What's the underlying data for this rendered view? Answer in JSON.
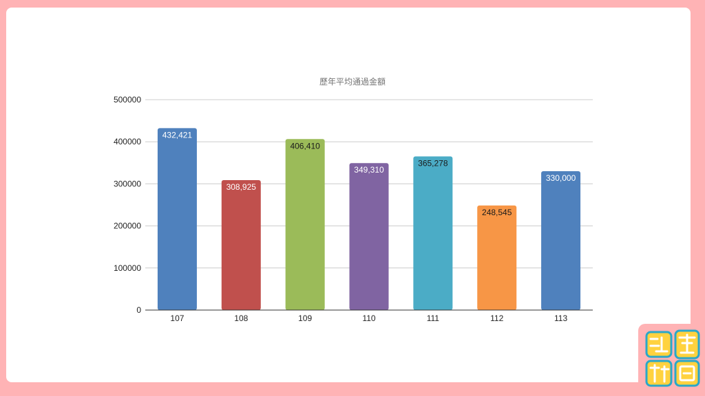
{
  "chart_data": {
    "type": "bar",
    "title": "歷年平均通過金額",
    "xlabel": "",
    "ylabel": "",
    "categories": [
      "107",
      "108",
      "109",
      "110",
      "111",
      "112",
      "113"
    ],
    "values": [
      432421,
      308925,
      406410,
      349310,
      365278,
      248545,
      330000
    ],
    "value_labels": [
      "432,421",
      "308,925",
      "406,410",
      "349,310",
      "365,278",
      "248,545",
      "330,000"
    ],
    "colors": [
      "#4f81bd",
      "#c0504d",
      "#9bbb59",
      "#8064a2",
      "#4bacc6",
      "#f79646",
      "#4f81bd"
    ],
    "label_colors": [
      "#ffffff",
      "#ffffff",
      "#1a1a1a",
      "#ffffff",
      "#1a1a1a",
      "#1a1a1a",
      "#ffffff"
    ],
    "y_ticks": [
      "0",
      "100000",
      "200000",
      "300000",
      "400000",
      "500000"
    ],
    "ylim": [
      0,
      500000
    ],
    "grid": true,
    "legend": "none"
  },
  "logo": {
    "name": "logo-mark",
    "colors": [
      "#ffd23f",
      "#2aa7c9",
      "#ffffff"
    ]
  }
}
